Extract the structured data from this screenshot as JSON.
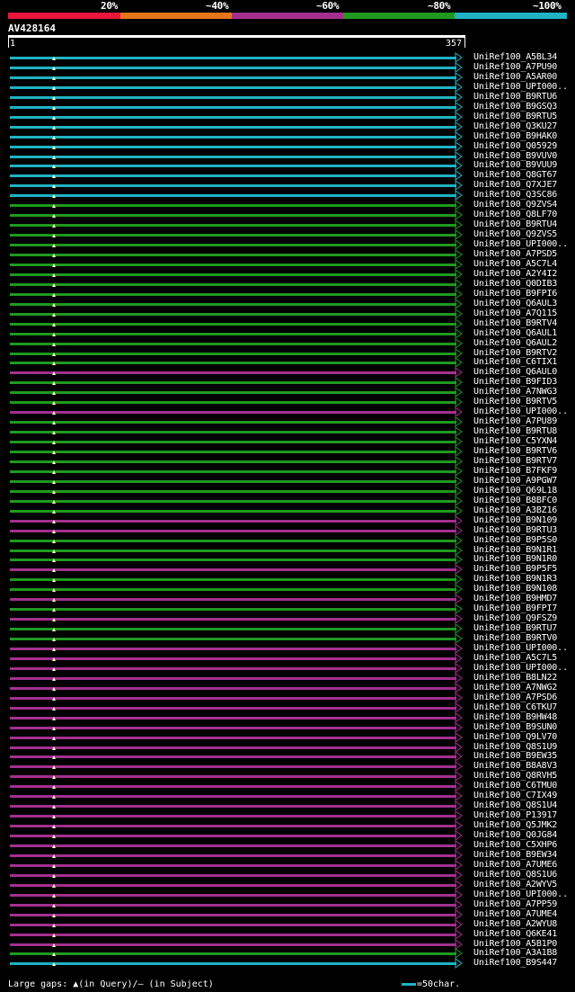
{
  "legend": {
    "labels": [
      "20%",
      "~40%",
      "~60%",
      "~80%",
      "~100%"
    ],
    "colors": [
      "#e8163a",
      "#e8751a",
      "#a3308f",
      "#1f9a1f",
      "#1fb3c4"
    ]
  },
  "query": {
    "title": "AV428164",
    "start": "1",
    "end": "357"
  },
  "hits": [
    {
      "label": "UniRef100_A5BL34",
      "color": "#1fb3c4"
    },
    {
      "label": "UniRef100_A7PU90",
      "color": "#1fb3c4"
    },
    {
      "label": "UniRef100_A5AR00",
      "color": "#1fb3c4"
    },
    {
      "label": "UniRef100_UPI000..",
      "color": "#1fb3c4"
    },
    {
      "label": "UniRef100_B9RTU6",
      "color": "#1fb3c4"
    },
    {
      "label": "UniRef100_B9GSQ3",
      "color": "#1fb3c4"
    },
    {
      "label": "UniRef100_B9RTU5",
      "color": "#1fb3c4"
    },
    {
      "label": "UniRef100_Q3KU27",
      "color": "#1fb3c4"
    },
    {
      "label": "UniRef100_B9HAK0",
      "color": "#1fb3c4"
    },
    {
      "label": "UniRef100_Q05929",
      "color": "#1fb3c4"
    },
    {
      "label": "UniRef100_B9VUV0",
      "color": "#1fb3c4"
    },
    {
      "label": "UniRef100_B9VUU9",
      "color": "#1fb3c4"
    },
    {
      "label": "UniRef100_Q8GT67",
      "color": "#1fb3c4"
    },
    {
      "label": "UniRef100_Q7XJE7",
      "color": "#1fb3c4"
    },
    {
      "label": "UniRef100_Q3SC86",
      "color": "#1fb3c4"
    },
    {
      "label": "UniRef100_Q9ZVS4",
      "color": "#1f9a1f"
    },
    {
      "label": "UniRef100_Q8LF70",
      "color": "#1f9a1f"
    },
    {
      "label": "UniRef100_B9RTU4",
      "color": "#1f9a1f"
    },
    {
      "label": "UniRef100_Q9ZVS5",
      "color": "#1f9a1f"
    },
    {
      "label": "UniRef100_UPI000..",
      "color": "#1f9a1f"
    },
    {
      "label": "UniRef100_A7PSD5",
      "color": "#1f9a1f"
    },
    {
      "label": "UniRef100_A5C7L4",
      "color": "#1f9a1f"
    },
    {
      "label": "UniRef100_A2Y4I2",
      "color": "#1f9a1f"
    },
    {
      "label": "UniRef100_Q0DIB3",
      "color": "#1f9a1f"
    },
    {
      "label": "UniRef100_B9FPI6",
      "color": "#1f9a1f"
    },
    {
      "label": "UniRef100_Q6AUL3",
      "color": "#1f9a1f"
    },
    {
      "label": "UniRef100_A7Q115",
      "color": "#1f9a1f"
    },
    {
      "label": "UniRef100_B9RTV4",
      "color": "#1f9a1f"
    },
    {
      "label": "UniRef100_Q6AUL1",
      "color": "#1f9a1f"
    },
    {
      "label": "UniRef100_Q6AUL2",
      "color": "#1f9a1f"
    },
    {
      "label": "UniRef100_B9RTV2",
      "color": "#1f9a1f"
    },
    {
      "label": "UniRef100_C6TIX1",
      "color": "#1f9a1f"
    },
    {
      "label": "UniRef100_Q6AUL0",
      "color": "#a3308f"
    },
    {
      "label": "UniRef100_B9FID3",
      "color": "#1f9a1f"
    },
    {
      "label": "UniRef100_A7NWG3",
      "color": "#1f9a1f"
    },
    {
      "label": "UniRef100_B9RTV5",
      "color": "#1f9a1f"
    },
    {
      "label": "UniRef100_UPI000..",
      "color": "#a3308f"
    },
    {
      "label": "UniRef100_A7PU89",
      "color": "#1f9a1f"
    },
    {
      "label": "UniRef100_B9RTU8",
      "color": "#1f9a1f"
    },
    {
      "label": "UniRef100_C5YXN4",
      "color": "#1f9a1f"
    },
    {
      "label": "UniRef100_B9RTV6",
      "color": "#1f9a1f"
    },
    {
      "label": "UniRef100_B9RTV7",
      "color": "#1f9a1f"
    },
    {
      "label": "UniRef100_B7FKF9",
      "color": "#1f9a1f"
    },
    {
      "label": "UniRef100_A9PGW7",
      "color": "#1f9a1f"
    },
    {
      "label": "UniRef100_Q69L18",
      "color": "#1f9a1f"
    },
    {
      "label": "UniRef100_B8BFC0",
      "color": "#1f9a1f"
    },
    {
      "label": "UniRef100_A3BZ16",
      "color": "#1f9a1f"
    },
    {
      "label": "UniRef100_B9N109",
      "color": "#a3308f"
    },
    {
      "label": "UniRef100_B9RTU3",
      "color": "#a3308f"
    },
    {
      "label": "UniRef100_B9P5S0",
      "color": "#1f9a1f"
    },
    {
      "label": "UniRef100_B9N1R1",
      "color": "#1f9a1f"
    },
    {
      "label": "UniRef100_B9N1R0",
      "color": "#1f9a1f"
    },
    {
      "label": "UniRef100_B9P5F5",
      "color": "#a3308f"
    },
    {
      "label": "UniRef100_B9N1R3",
      "color": "#1f9a1f"
    },
    {
      "label": "UniRef100_B9N108",
      "color": "#1f9a1f"
    },
    {
      "label": "UniRef100_B9HMD7",
      "color": "#a3308f"
    },
    {
      "label": "UniRef100_B9FPI7",
      "color": "#1f9a1f"
    },
    {
      "label": "UniRef100_Q9FSZ9",
      "color": "#a3308f"
    },
    {
      "label": "UniRef100_B9RTU7",
      "color": "#1f9a1f"
    },
    {
      "label": "UniRef100_B9RTV0",
      "color": "#1f9a1f"
    },
    {
      "label": "UniRef100_UPI000..",
      "color": "#a3308f"
    },
    {
      "label": "UniRef100_A5C7L5",
      "color": "#a3308f"
    },
    {
      "label": "UniRef100_UPI000..",
      "color": "#a3308f"
    },
    {
      "label": "UniRef100_B8LN22",
      "color": "#a3308f"
    },
    {
      "label": "UniRef100_A7NWG2",
      "color": "#a3308f"
    },
    {
      "label": "UniRef100_A7PSD6",
      "color": "#a3308f"
    },
    {
      "label": "UniRef100_C6TKU7",
      "color": "#a3308f"
    },
    {
      "label": "UniRef100_B9HW48",
      "color": "#a3308f"
    },
    {
      "label": "UniRef100_B9SUN0",
      "color": "#a3308f"
    },
    {
      "label": "UniRef100_Q9LV70",
      "color": "#a3308f"
    },
    {
      "label": "UniRef100_Q8S1U9",
      "color": "#a3308f"
    },
    {
      "label": "UniRef100_B9EW35",
      "color": "#a3308f"
    },
    {
      "label": "UniRef100_B8A8V3",
      "color": "#a3308f"
    },
    {
      "label": "UniRef100_Q8RVH5",
      "color": "#a3308f"
    },
    {
      "label": "UniRef100_C6TMU0",
      "color": "#a3308f"
    },
    {
      "label": "UniRef100_C7IX49",
      "color": "#a3308f"
    },
    {
      "label": "UniRef100_Q8S1U4",
      "color": "#a3308f"
    },
    {
      "label": "UniRef100_P13917",
      "color": "#a3308f"
    },
    {
      "label": "UniRef100_Q5JMK2",
      "color": "#a3308f"
    },
    {
      "label": "UniRef100_Q0JG84",
      "color": "#a3308f"
    },
    {
      "label": "UniRef100_C5XHP6",
      "color": "#a3308f"
    },
    {
      "label": "UniRef100_B9EW34",
      "color": "#a3308f"
    },
    {
      "label": "UniRef100_A7UME6",
      "color": "#a3308f"
    },
    {
      "label": "UniRef100_Q8S1U6",
      "color": "#a3308f"
    },
    {
      "label": "UniRef100_A2WYV5",
      "color": "#a3308f"
    },
    {
      "label": "UniRef100_UPI000..",
      "color": "#a3308f"
    },
    {
      "label": "UniRef100_A7PP59",
      "color": "#a3308f"
    },
    {
      "label": "UniRef100_A7UME4",
      "color": "#a3308f"
    },
    {
      "label": "UniRef100_A2WYU8",
      "color": "#a3308f"
    },
    {
      "label": "UniRef100_Q6KE41",
      "color": "#a3308f"
    },
    {
      "label": "UniRef100_A5B1P0",
      "color": "#a3308f"
    },
    {
      "label": "UniRef100_A3A1B8",
      "color": "#1f9a1f"
    },
    {
      "label": "UniRef100_B9S447",
      "color": "#1fb3c4"
    }
  ],
  "footer": {
    "gaps_text": "Large gaps: ▲(in Query)/– (in Subject)",
    "scale_text": "=50char."
  }
}
